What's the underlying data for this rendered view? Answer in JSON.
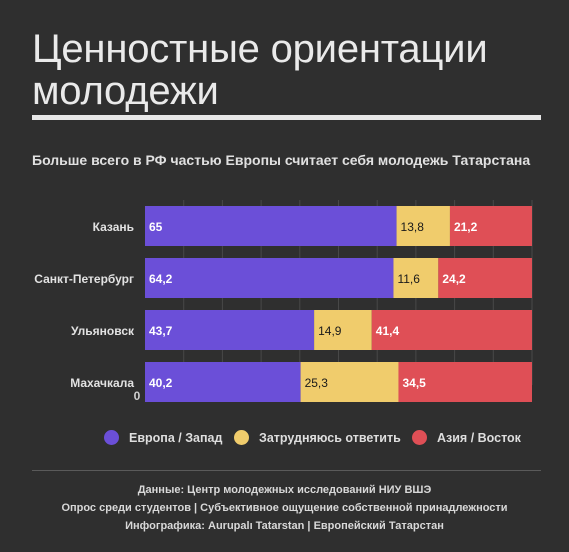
{
  "header": {
    "title_line1": "Ценностные ориентации",
    "title_line2": "молодежи"
  },
  "colors": {
    "europe": "#6b4fd8",
    "unsure": "#f0cc6c",
    "asia": "#df4f56",
    "background": "#2f2f2f"
  },
  "chart_data": {
    "type": "bar",
    "stacked": true,
    "orientation": "horizontal",
    "title": "Больше всего в РФ частью Европы считает себя молодежь Татарстана",
    "categories": [
      "Казань",
      "Санкт-Петербург",
      "Ульяновск",
      "Махачкала"
    ],
    "series": [
      {
        "name": "Европа / Запад",
        "values": [
          65,
          64.2,
          43.7,
          40.2
        ],
        "labels": [
          "65",
          "64,2",
          "43,7",
          "40,2"
        ]
      },
      {
        "name": "Затрудняюсь ответить",
        "values": [
          13.8,
          11.6,
          14.9,
          25.3
        ],
        "labels": [
          "13,8",
          "11,6",
          "14,9",
          "25,3"
        ]
      },
      {
        "name": "Азия / Восток",
        "values": [
          21.2,
          24.2,
          41.4,
          34.5
        ],
        "labels": [
          "21,2",
          "24,2",
          "41,4",
          "34,5"
        ]
      }
    ],
    "xlim": [
      0,
      100
    ],
    "xticks": [
      "0",
      "10",
      "20",
      "30",
      "40",
      "50",
      "60",
      "70",
      "80",
      "90",
      "%"
    ],
    "legend_position": "bottom",
    "grid": true
  },
  "footer": {
    "line1": "Данные: Центр молодежных исследований НИУ ВШЭ",
    "line2": "Опрос среди студентов | Субъективное ощущение собственной принадлежности",
    "line3": "Инфографика: Aurupalı Tatarstan | Европейский Татарстан"
  }
}
